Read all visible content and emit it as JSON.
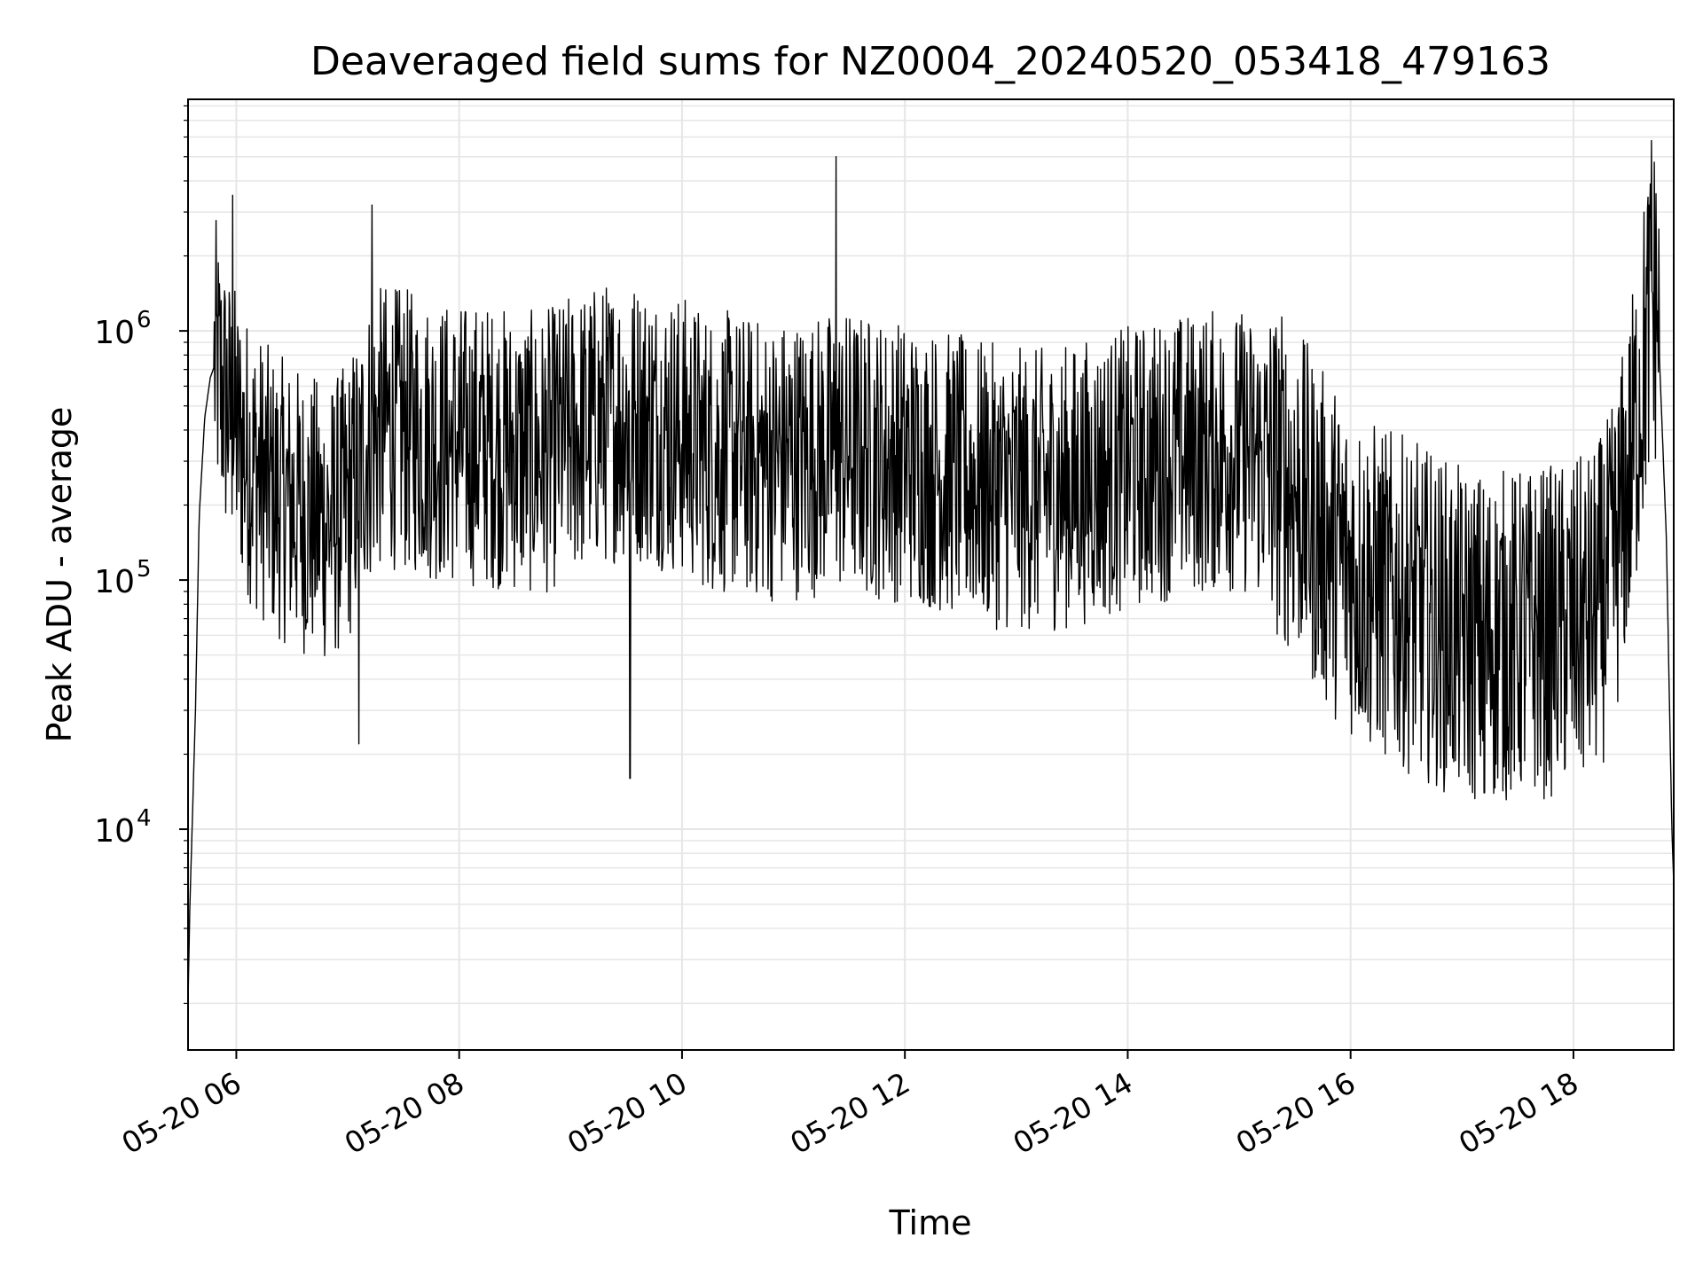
{
  "chart_data": {
    "type": "line",
    "title": "Deaveraged field sums for NZ0004_20240520_053418_479163",
    "xlabel": "Time",
    "ylabel": "Peak ADU - average",
    "yscale": "log",
    "ylim": [
      1300,
      8500000
    ],
    "xlim": [
      "2024-05-20 05:34",
      "2024-05-20 18:54"
    ],
    "x_ticks": [
      "2024-05-20 06:00",
      "2024-05-20 08:00",
      "2024-05-20 10:00",
      "2024-05-20 12:00",
      "2024-05-20 14:00",
      "2024-05-20 16:00",
      "2024-05-20 18:00"
    ],
    "x_tick_labels": [
      "05-20 06",
      "05-20 08",
      "05-20 10",
      "05-20 12",
      "05-20 14",
      "05-20 16",
      "05-20 18"
    ],
    "y_ticks": [
      10000,
      100000,
      1000000
    ],
    "y_tick_labels": [
      {
        "base": "10",
        "exp": "4"
      },
      {
        "base": "10",
        "exp": "5"
      },
      {
        "base": "10",
        "exp": "6"
      }
    ],
    "grid": true,
    "line_color": "#000000",
    "series": [
      {
        "x": [
          "2024-05-20 05:34",
          "2024-05-20 05:35",
          "2024-05-20 05:36",
          "2024-05-20 05:38",
          "2024-05-20 05:40",
          "2024-05-20 05:43",
          "2024-05-20 05:46",
          "2024-05-20 05:49",
          "2024-05-20 05:52",
          "2024-05-20 05:55",
          "2024-05-20 05:57",
          "2024-05-20 06:00",
          "2024-05-20 06:05",
          "2024-05-20 06:10",
          "2024-05-20 06:20",
          "2024-05-20 06:30",
          "2024-05-20 06:40",
          "2024-05-20 06:50",
          "2024-05-20 07:00",
          "2024-05-20 07:10",
          "2024-05-20 07:20",
          "2024-05-20 07:30",
          "2024-05-20 07:40",
          "2024-05-20 07:50",
          "2024-05-20 08:00",
          "2024-05-20 08:15",
          "2024-05-20 08:30",
          "2024-05-20 08:45",
          "2024-05-20 09:00",
          "2024-05-20 09:15",
          "2024-05-20 09:30",
          "2024-05-20 09:45",
          "2024-05-20 10:00",
          "2024-05-20 10:15",
          "2024-05-20 10:30",
          "2024-05-20 10:45",
          "2024-05-20 11:00",
          "2024-05-20 11:15",
          "2024-05-20 11:30",
          "2024-05-20 11:45",
          "2024-05-20 12:00",
          "2024-05-20 12:15",
          "2024-05-20 12:30",
          "2024-05-20 12:45",
          "2024-05-20 13:00",
          "2024-05-20 13:15",
          "2024-05-20 13:30",
          "2024-05-20 13:45",
          "2024-05-20 14:00",
          "2024-05-20 14:15",
          "2024-05-20 14:30",
          "2024-05-20 14:45",
          "2024-05-20 15:00",
          "2024-05-20 15:15",
          "2024-05-20 15:30",
          "2024-05-20 15:45",
          "2024-05-20 16:00",
          "2024-05-20 16:15",
          "2024-05-20 16:30",
          "2024-05-20 16:45",
          "2024-05-20 17:00",
          "2024-05-20 17:15",
          "2024-05-20 17:30",
          "2024-05-20 17:45",
          "2024-05-20 18:00",
          "2024-05-20 18:10",
          "2024-05-20 18:20",
          "2024-05-20 18:30",
          "2024-05-20 18:35",
          "2024-05-20 18:40",
          "2024-05-20 18:45",
          "2024-05-20 18:50",
          "2024-05-20 18:53",
          "2024-05-20 18:54"
        ],
        "y": [
          2000,
          5000,
          9000,
          30000,
          180000,
          450000,
          650000,
          750000,
          600000,
          500000,
          450000,
          400000,
          320000,
          280000,
          220000,
          200000,
          180000,
          170000,
          200000,
          350000,
          420000,
          400000,
          380000,
          360000,
          350000,
          350000,
          330000,
          320000,
          380000,
          420000,
          450000,
          420000,
          380000,
          330000,
          320000,
          300000,
          310000,
          320000,
          330000,
          310000,
          300000,
          280000,
          260000,
          240000,
          230000,
          230000,
          240000,
          260000,
          280000,
          300000,
          320000,
          330000,
          330000,
          300000,
          230000,
          150000,
          110000,
          90000,
          80000,
          70000,
          60000,
          60000,
          60000,
          62000,
          65000,
          70000,
          100000,
          250000,
          500000,
          1000000,
          1400000,
          150000,
          10000,
          6000
        ]
      }
    ],
    "spikes": [
      {
        "x": "2024-05-20 11:23",
        "y": 5000000
      },
      {
        "x": "2024-05-20 18:42",
        "y": 5800000
      },
      {
        "x": "2024-05-20 05:58",
        "y": 3500000
      },
      {
        "x": "2024-05-20 07:13",
        "y": 3200000
      },
      {
        "x": "2024-05-20 09:32",
        "y": 16000
      },
      {
        "x": "2024-05-20 07:06",
        "y": 22000
      },
      {
        "x": "2024-05-20 17:12",
        "y": 14000
      }
    ]
  }
}
